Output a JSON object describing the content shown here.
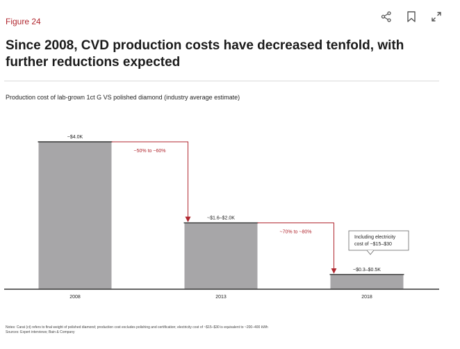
{
  "header": {
    "figure_label": "Figure 24",
    "title": "Since 2008, CVD production costs have decreased tenfold, with further reductions expected",
    "icons": [
      "share-icon",
      "bookmark-icon",
      "expand-icon"
    ]
  },
  "colors": {
    "accent": "#b0262e",
    "bar": "#a7a6a8",
    "baseline": "#333333"
  },
  "chart_data": {
    "type": "bar",
    "title": "Production cost of lab-grown 1ct G VS polished diamond (industry average estimate)",
    "categories": [
      "2008",
      "2013",
      "2018"
    ],
    "values": [
      4.0,
      1.8,
      0.4
    ],
    "value_labels": [
      "~$4.0K",
      "~$1.6–$2.0K",
      "~$0.3–$0.5K"
    ],
    "unit": "$K",
    "ylim": [
      0,
      4.0
    ],
    "grid": false,
    "annotations": [
      {
        "from": 0,
        "to": 1,
        "label": "~50% to ~60%"
      },
      {
        "from": 1,
        "to": 2,
        "label": "~70% to ~80%"
      }
    ],
    "callout": {
      "bar": 2,
      "lines": [
        "Including electricity",
        "cost of ~$15–$30"
      ]
    }
  },
  "footer": {
    "notes": "Notes: Carat (ct) refers to final weight of polished diamond; production cost excludes polishing and certification; electricity cost of ~$15–$30 is equivalent to ~200–400 kWh",
    "sources": "Sources: Expert interviews; Bain & Company"
  }
}
